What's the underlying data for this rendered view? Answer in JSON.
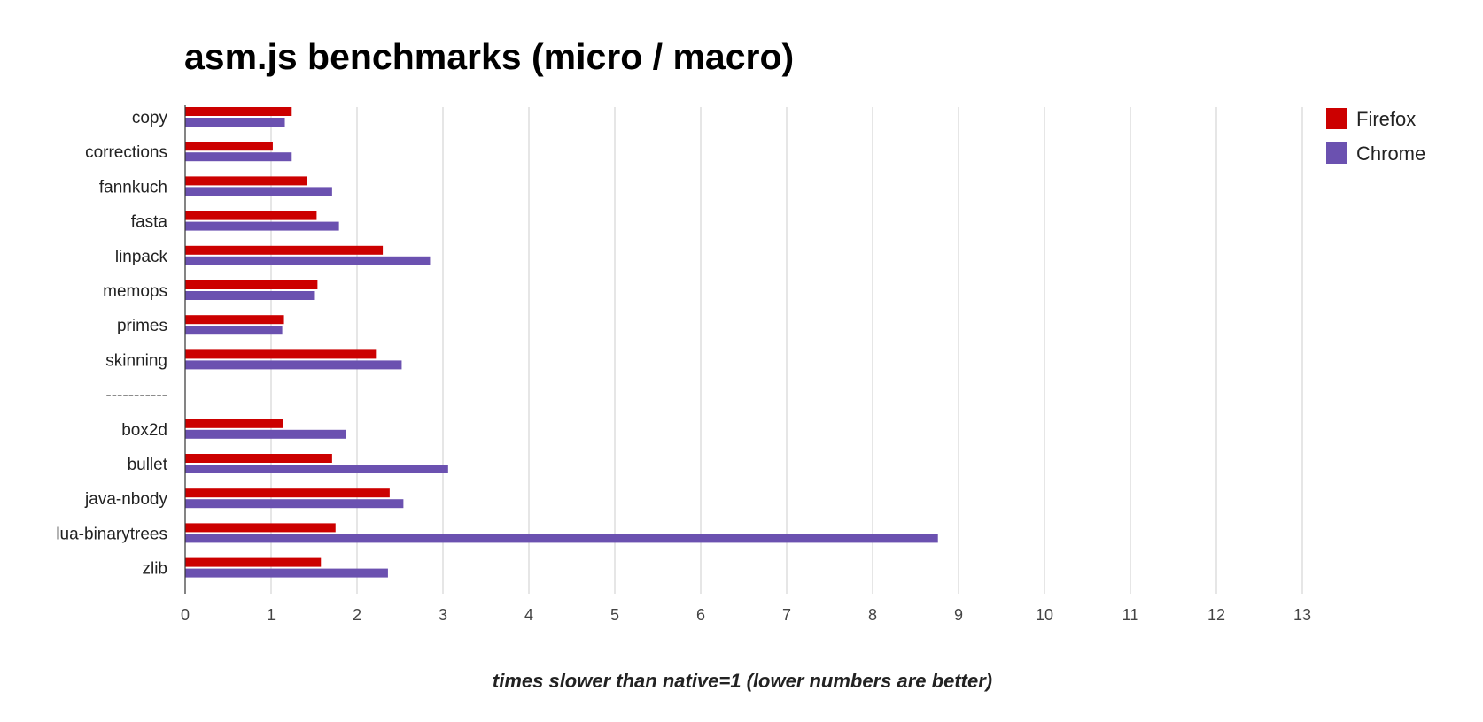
{
  "chart_data": {
    "type": "bar",
    "orientation": "horizontal",
    "title": "asm.js benchmarks (micro / macro)",
    "xlabel": "times slower than native=1 (lower numbers are better)",
    "ylabel": "",
    "xlim": [
      0,
      13
    ],
    "x_ticks": [
      "0",
      "1",
      "2",
      "3",
      "4",
      "5",
      "6",
      "7",
      "8",
      "9",
      "10",
      "11",
      "12",
      "13"
    ],
    "grid": true,
    "legend_position": "top-right",
    "categories": [
      "copy",
      "corrections",
      "fannkuch",
      "fasta",
      "linpack",
      "memops",
      "primes",
      "skinning",
      "-----------",
      "box2d",
      "bullet",
      "java-nbody",
      "lua-binarytrees",
      "zlib"
    ],
    "series": [
      {
        "name": "Firefox",
        "color": "#cc0000",
        "values": [
          1.24,
          1.02,
          1.42,
          1.53,
          2.3,
          1.54,
          1.15,
          2.22,
          null,
          1.14,
          1.71,
          2.38,
          1.75,
          1.58
        ]
      },
      {
        "name": "Chrome",
        "color": "#6b51b0",
        "values": [
          1.16,
          1.24,
          1.71,
          1.79,
          2.85,
          1.51,
          1.13,
          2.52,
          null,
          1.87,
          3.06,
          2.54,
          8.76,
          2.36
        ]
      }
    ]
  }
}
